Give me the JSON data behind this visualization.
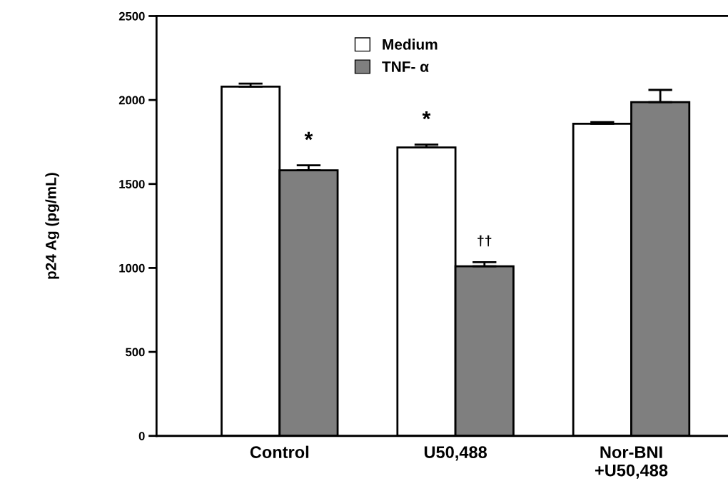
{
  "chart_data": {
    "type": "bar",
    "ylabel": "p24 Ag (pg/mL)",
    "categories": [
      "Control",
      "U50,488",
      "Nor-BNI\n+U50,488"
    ],
    "series": [
      {
        "name": "Medium",
        "color": "#ffffff",
        "values": [
          2080,
          1717,
          1859
        ],
        "errors": [
          18,
          17,
          9
        ]
      },
      {
        "name": "TNF- α",
        "color": "#7f7f7f",
        "values": [
          1581,
          1010,
          1987
        ],
        "errors": [
          30,
          24,
          73
        ]
      }
    ],
    "ylim": [
      0,
      2500
    ],
    "yticks": [
      0,
      500,
      1000,
      1500,
      2000,
      2500
    ],
    "grid": false,
    "legend": "top",
    "annotations": [
      {
        "text": "*",
        "x": "Control",
        "y": 1611
      },
      {
        "text": "*",
        "x": "U50,488",
        "y": 1734
      },
      {
        "text": "††",
        "x": "U50,488",
        "y": 1034
      }
    ]
  }
}
